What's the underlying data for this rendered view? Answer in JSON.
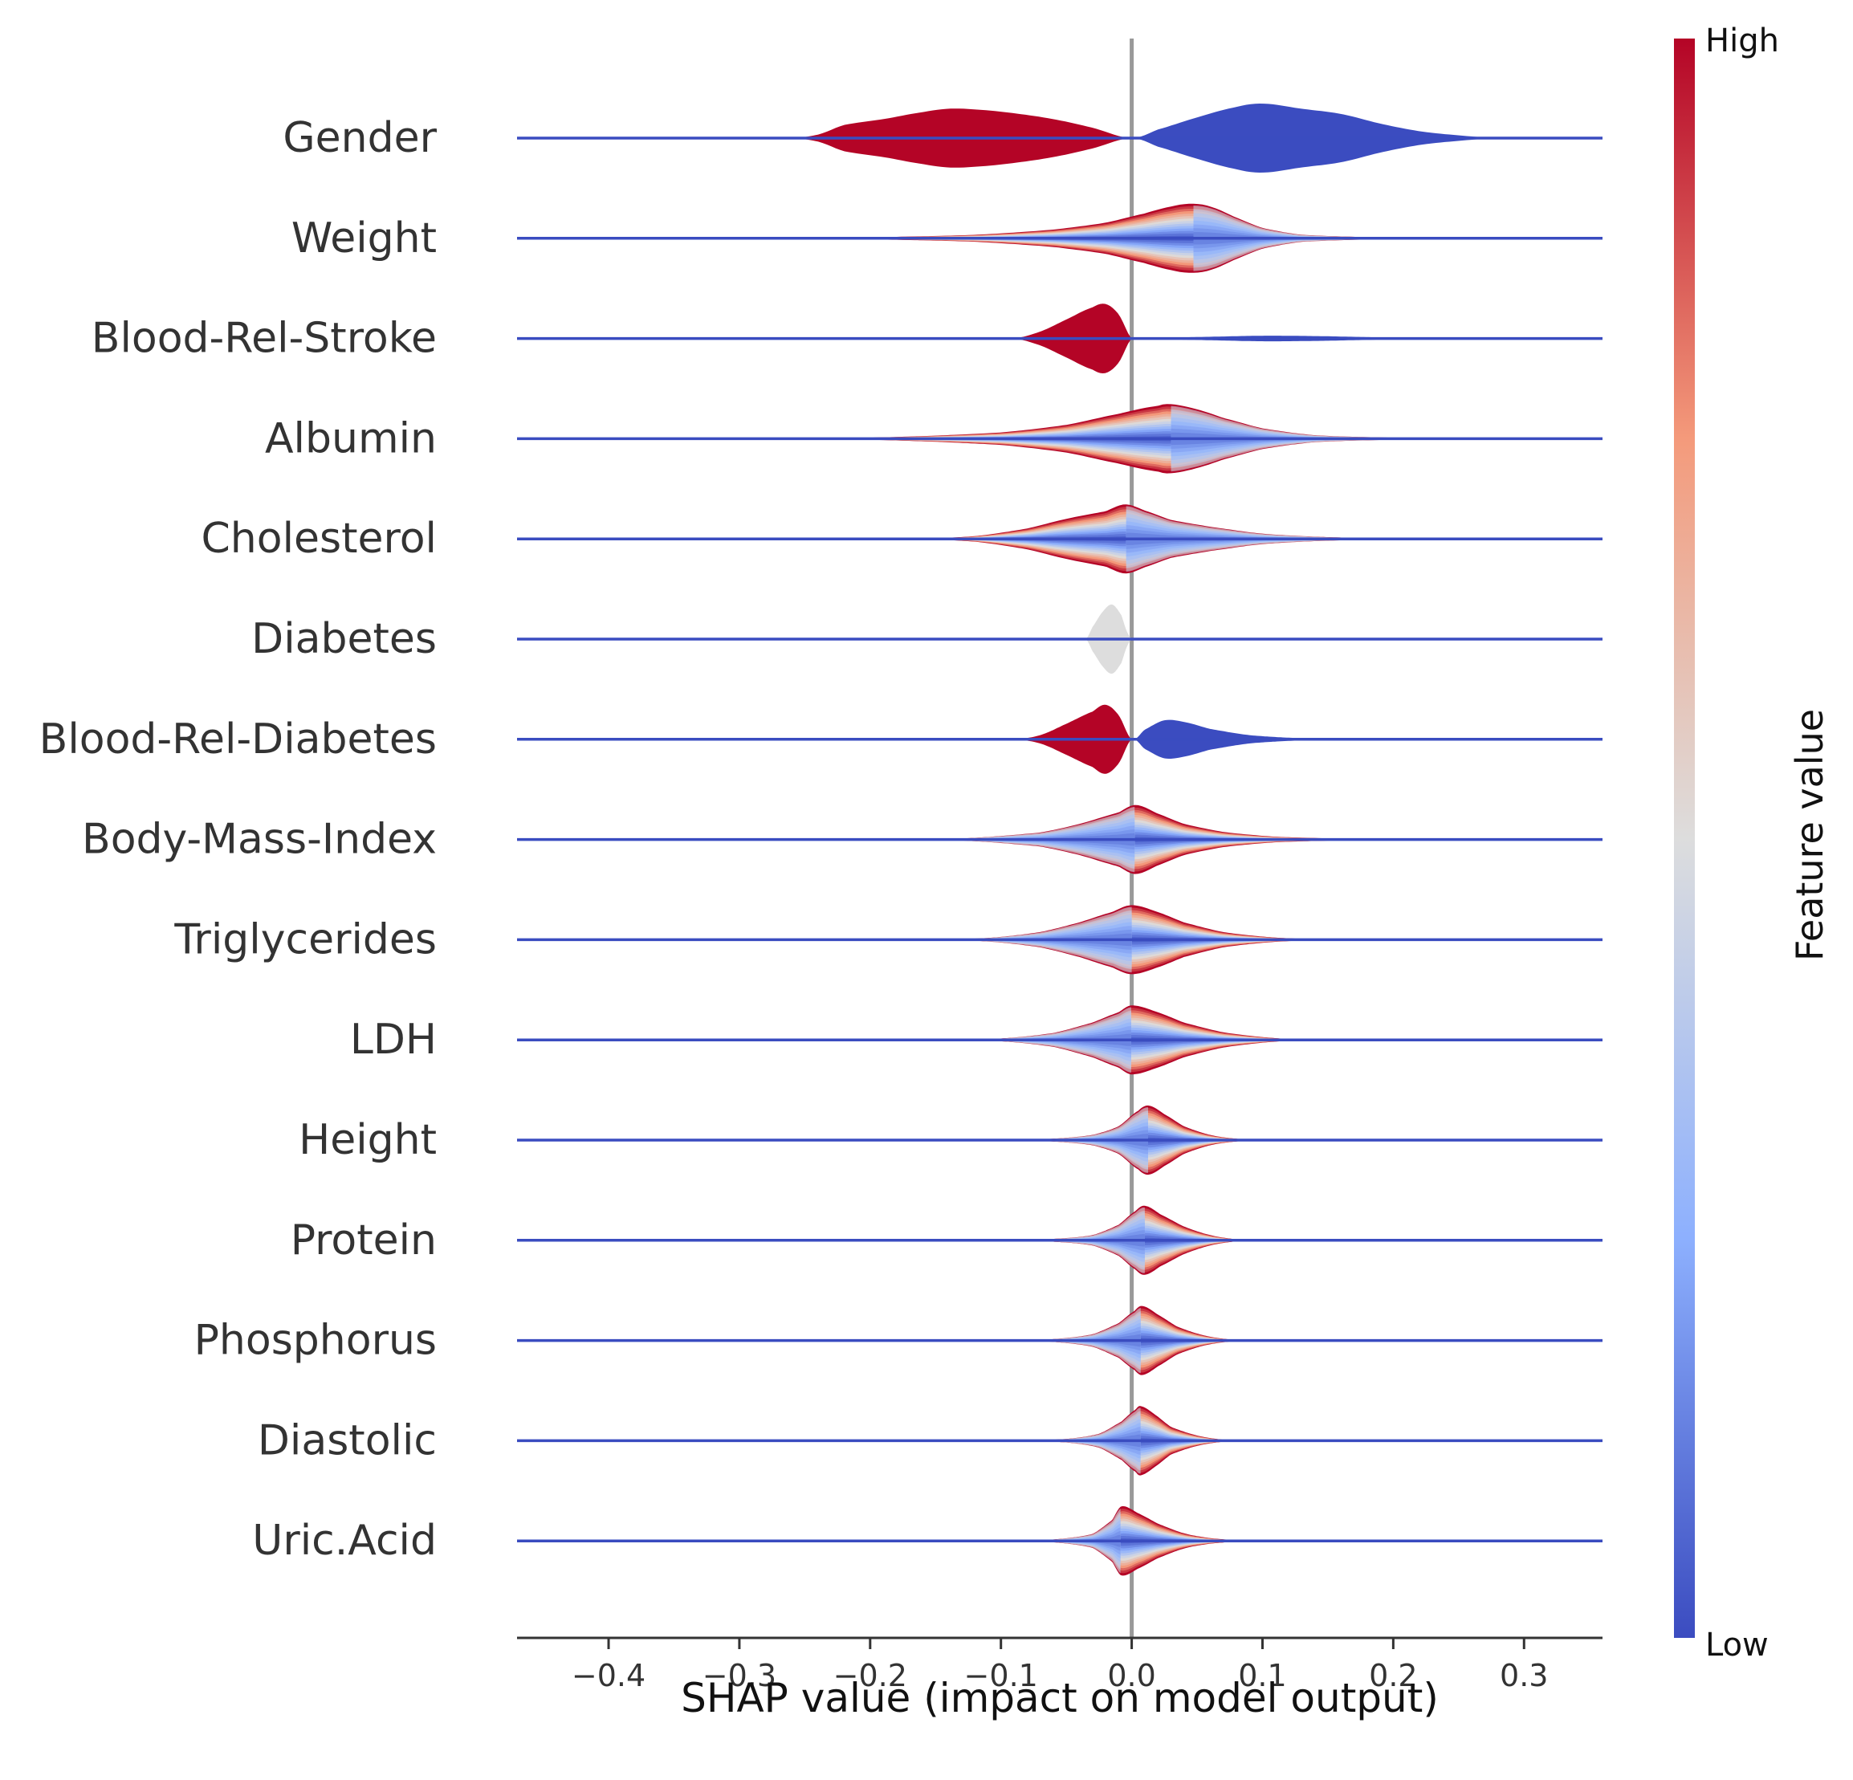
{
  "chart_data": {
    "type": "violin",
    "xlabel": "SHAP value (impact on model output)",
    "xlim": [
      -0.47,
      0.36
    ],
    "xticks": [
      {
        "value": -0.4,
        "label": "−0.4"
      },
      {
        "value": -0.3,
        "label": "−0.3"
      },
      {
        "value": -0.2,
        "label": "−0.2"
      },
      {
        "value": -0.1,
        "label": "−0.1"
      },
      {
        "value": 0.0,
        "label": "0.0"
      },
      {
        "value": 0.1,
        "label": "0.1"
      },
      {
        "value": 0.2,
        "label": "0.2"
      },
      {
        "value": 0.3,
        "label": "0.3"
      }
    ],
    "colorbar": {
      "title": "Feature value",
      "high_label": "High",
      "low_label": "Low",
      "low_color": "#3b4cc0",
      "mid_color": "#dddddd",
      "high_color": "#b40426"
    },
    "zero_line_color": "#999999",
    "baseline_color": "#3a4cc0",
    "features": [
      {
        "name": "Gender",
        "style": "binary",
        "neg_color": "#b40426",
        "pos_color": "#3b4cc0",
        "density": [
          [
            -0.26,
            0.0
          ],
          [
            -0.24,
            0.1
          ],
          [
            -0.22,
            0.38
          ],
          [
            -0.19,
            0.55
          ],
          [
            -0.16,
            0.75
          ],
          [
            -0.14,
            0.85
          ],
          [
            -0.12,
            0.83
          ],
          [
            -0.09,
            0.72
          ],
          [
            -0.06,
            0.55
          ],
          [
            -0.03,
            0.3
          ],
          [
            0.0,
            0.0
          ],
          [
            0.02,
            0.25
          ],
          [
            0.05,
            0.6
          ],
          [
            0.08,
            0.9
          ],
          [
            0.1,
            1.0
          ],
          [
            0.13,
            0.85
          ],
          [
            0.16,
            0.7
          ],
          [
            0.19,
            0.42
          ],
          [
            0.22,
            0.2
          ],
          [
            0.25,
            0.08
          ],
          [
            0.28,
            0.0
          ]
        ]
      },
      {
        "name": "Weight",
        "style": "continuous",
        "low_side": "right",
        "density": [
          [
            -0.3,
            0.0
          ],
          [
            -0.2,
            0.03
          ],
          [
            -0.12,
            0.1
          ],
          [
            -0.06,
            0.25
          ],
          [
            -0.02,
            0.45
          ],
          [
            0.01,
            0.72
          ],
          [
            0.03,
            0.92
          ],
          [
            0.045,
            1.0
          ],
          [
            0.06,
            0.92
          ],
          [
            0.08,
            0.6
          ],
          [
            0.1,
            0.3
          ],
          [
            0.13,
            0.1
          ],
          [
            0.2,
            0.02
          ],
          [
            0.25,
            0.0
          ]
        ]
      },
      {
        "name": "Blood-Rel-Stroke",
        "style": "binary",
        "neg_color": "#b40426",
        "pos_color": "#3b4cc0",
        "density": [
          [
            -0.09,
            0.0
          ],
          [
            -0.07,
            0.2
          ],
          [
            -0.05,
            0.55
          ],
          [
            -0.03,
            0.9
          ],
          [
            -0.02,
            1.0
          ],
          [
            -0.01,
            0.7
          ],
          [
            0.0,
            0.0
          ],
          [
            0.02,
            0.02
          ],
          [
            0.06,
            0.05
          ],
          [
            0.1,
            0.08
          ],
          [
            0.14,
            0.07
          ],
          [
            0.18,
            0.04
          ],
          [
            0.22,
            0.0
          ]
        ]
      },
      {
        "name": "Albumin",
        "style": "continuous",
        "low_side": "right",
        "density": [
          [
            -0.26,
            0.0
          ],
          [
            -0.18,
            0.05
          ],
          [
            -0.1,
            0.18
          ],
          [
            -0.05,
            0.4
          ],
          [
            -0.01,
            0.72
          ],
          [
            0.02,
            0.95
          ],
          [
            0.03,
            1.0
          ],
          [
            0.05,
            0.85
          ],
          [
            0.07,
            0.6
          ],
          [
            0.1,
            0.3
          ],
          [
            0.14,
            0.1
          ],
          [
            0.2,
            0.03
          ],
          [
            0.25,
            0.0
          ]
        ]
      },
      {
        "name": "Cholesterol",
        "style": "continuous",
        "low_side": "right",
        "density": [
          [
            -0.17,
            0.0
          ],
          [
            -0.12,
            0.08
          ],
          [
            -0.08,
            0.3
          ],
          [
            -0.05,
            0.58
          ],
          [
            -0.02,
            0.8
          ],
          [
            -0.005,
            1.0
          ],
          [
            0.01,
            0.82
          ],
          [
            0.03,
            0.55
          ],
          [
            0.06,
            0.35
          ],
          [
            0.1,
            0.15
          ],
          [
            0.15,
            0.05
          ],
          [
            0.22,
            0.0
          ]
        ]
      },
      {
        "name": "Diabetes",
        "style": "single",
        "color": "#dddddd",
        "density": [
          [
            -0.035,
            0.0
          ],
          [
            -0.03,
            0.35
          ],
          [
            -0.022,
            0.8
          ],
          [
            -0.015,
            1.0
          ],
          [
            -0.008,
            0.7
          ],
          [
            -0.004,
            0.25
          ],
          [
            0.0,
            0.0
          ]
        ]
      },
      {
        "name": "Blood-Rel-Diabetes",
        "style": "binary",
        "neg_color": "#b40426",
        "pos_color": "#3b4cc0",
        "density": [
          [
            -0.09,
            0.0
          ],
          [
            -0.07,
            0.12
          ],
          [
            -0.05,
            0.45
          ],
          [
            -0.03,
            0.8
          ],
          [
            -0.02,
            1.0
          ],
          [
            -0.01,
            0.7
          ],
          [
            0.0,
            0.0
          ],
          [
            0.01,
            0.28
          ],
          [
            0.025,
            0.55
          ],
          [
            0.04,
            0.5
          ],
          [
            0.06,
            0.3
          ],
          [
            0.09,
            0.12
          ],
          [
            0.13,
            0.03
          ],
          [
            0.15,
            0.0
          ]
        ]
      },
      {
        "name": "Body-Mass-Index",
        "style": "continuous",
        "low_side": "left",
        "density": [
          [
            -0.22,
            0.0
          ],
          [
            -0.13,
            0.03
          ],
          [
            -0.07,
            0.2
          ],
          [
            -0.04,
            0.45
          ],
          [
            -0.01,
            0.78
          ],
          [
            0.003,
            1.0
          ],
          [
            0.02,
            0.75
          ],
          [
            0.04,
            0.45
          ],
          [
            0.07,
            0.22
          ],
          [
            0.11,
            0.08
          ],
          [
            0.17,
            0.02
          ],
          [
            0.23,
            0.0
          ]
        ]
      },
      {
        "name": "Triglycerides",
        "style": "continuous",
        "low_side": "left",
        "density": [
          [
            -0.16,
            0.0
          ],
          [
            -0.11,
            0.05
          ],
          [
            -0.07,
            0.22
          ],
          [
            -0.04,
            0.5
          ],
          [
            -0.015,
            0.8
          ],
          [
            0.0,
            1.0
          ],
          [
            0.02,
            0.8
          ],
          [
            0.04,
            0.5
          ],
          [
            0.07,
            0.22
          ],
          [
            0.11,
            0.06
          ],
          [
            0.16,
            0.0
          ]
        ]
      },
      {
        "name": "LDH",
        "style": "continuous",
        "low_side": "left",
        "density": [
          [
            -0.14,
            0.0
          ],
          [
            -0.1,
            0.04
          ],
          [
            -0.06,
            0.2
          ],
          [
            -0.03,
            0.5
          ],
          [
            -0.01,
            0.8
          ],
          [
            0.0,
            1.0
          ],
          [
            0.02,
            0.8
          ],
          [
            0.04,
            0.5
          ],
          [
            0.07,
            0.22
          ],
          [
            0.11,
            0.05
          ],
          [
            0.15,
            0.0
          ]
        ]
      },
      {
        "name": "Height",
        "style": "continuous",
        "low_side": "left",
        "density": [
          [
            -0.1,
            0.0
          ],
          [
            -0.06,
            0.04
          ],
          [
            -0.03,
            0.15
          ],
          [
            -0.01,
            0.4
          ],
          [
            0.005,
            0.85
          ],
          [
            0.013,
            1.0
          ],
          [
            0.025,
            0.75
          ],
          [
            0.04,
            0.4
          ],
          [
            0.06,
            0.15
          ],
          [
            0.08,
            0.04
          ],
          [
            0.1,
            0.0
          ]
        ]
      },
      {
        "name": "Protein",
        "style": "continuous",
        "low_side": "left",
        "density": [
          [
            -0.1,
            0.0
          ],
          [
            -0.06,
            0.04
          ],
          [
            -0.03,
            0.15
          ],
          [
            -0.01,
            0.45
          ],
          [
            0.003,
            0.85
          ],
          [
            0.01,
            1.0
          ],
          [
            0.022,
            0.75
          ],
          [
            0.04,
            0.4
          ],
          [
            0.06,
            0.15
          ],
          [
            0.08,
            0.03
          ],
          [
            0.1,
            0.0
          ]
        ]
      },
      {
        "name": "Phosphorus",
        "style": "continuous",
        "low_side": "left",
        "density": [
          [
            -0.1,
            0.0
          ],
          [
            -0.06,
            0.04
          ],
          [
            -0.03,
            0.18
          ],
          [
            -0.01,
            0.5
          ],
          [
            0.002,
            0.85
          ],
          [
            0.008,
            1.0
          ],
          [
            0.02,
            0.75
          ],
          [
            0.035,
            0.4
          ],
          [
            0.055,
            0.15
          ],
          [
            0.075,
            0.03
          ],
          [
            0.09,
            0.0
          ]
        ]
      },
      {
        "name": "Diastolic",
        "style": "continuous",
        "low_side": "left",
        "density": [
          [
            -0.09,
            0.0
          ],
          [
            -0.05,
            0.05
          ],
          [
            -0.025,
            0.2
          ],
          [
            -0.008,
            0.55
          ],
          [
            0.003,
            0.9
          ],
          [
            0.007,
            1.0
          ],
          [
            0.018,
            0.75
          ],
          [
            0.03,
            0.4
          ],
          [
            0.05,
            0.15
          ],
          [
            0.07,
            0.03
          ],
          [
            0.09,
            0.0
          ]
        ]
      },
      {
        "name": "Uric.Acid",
        "style": "continuous",
        "low_side": "left",
        "density": [
          [
            -0.1,
            0.0
          ],
          [
            -0.06,
            0.04
          ],
          [
            -0.03,
            0.2
          ],
          [
            -0.015,
            0.6
          ],
          [
            -0.008,
            1.0
          ],
          [
            0.005,
            0.8
          ],
          [
            0.02,
            0.5
          ],
          [
            0.04,
            0.22
          ],
          [
            0.06,
            0.08
          ],
          [
            0.09,
            0.0
          ]
        ]
      }
    ]
  }
}
